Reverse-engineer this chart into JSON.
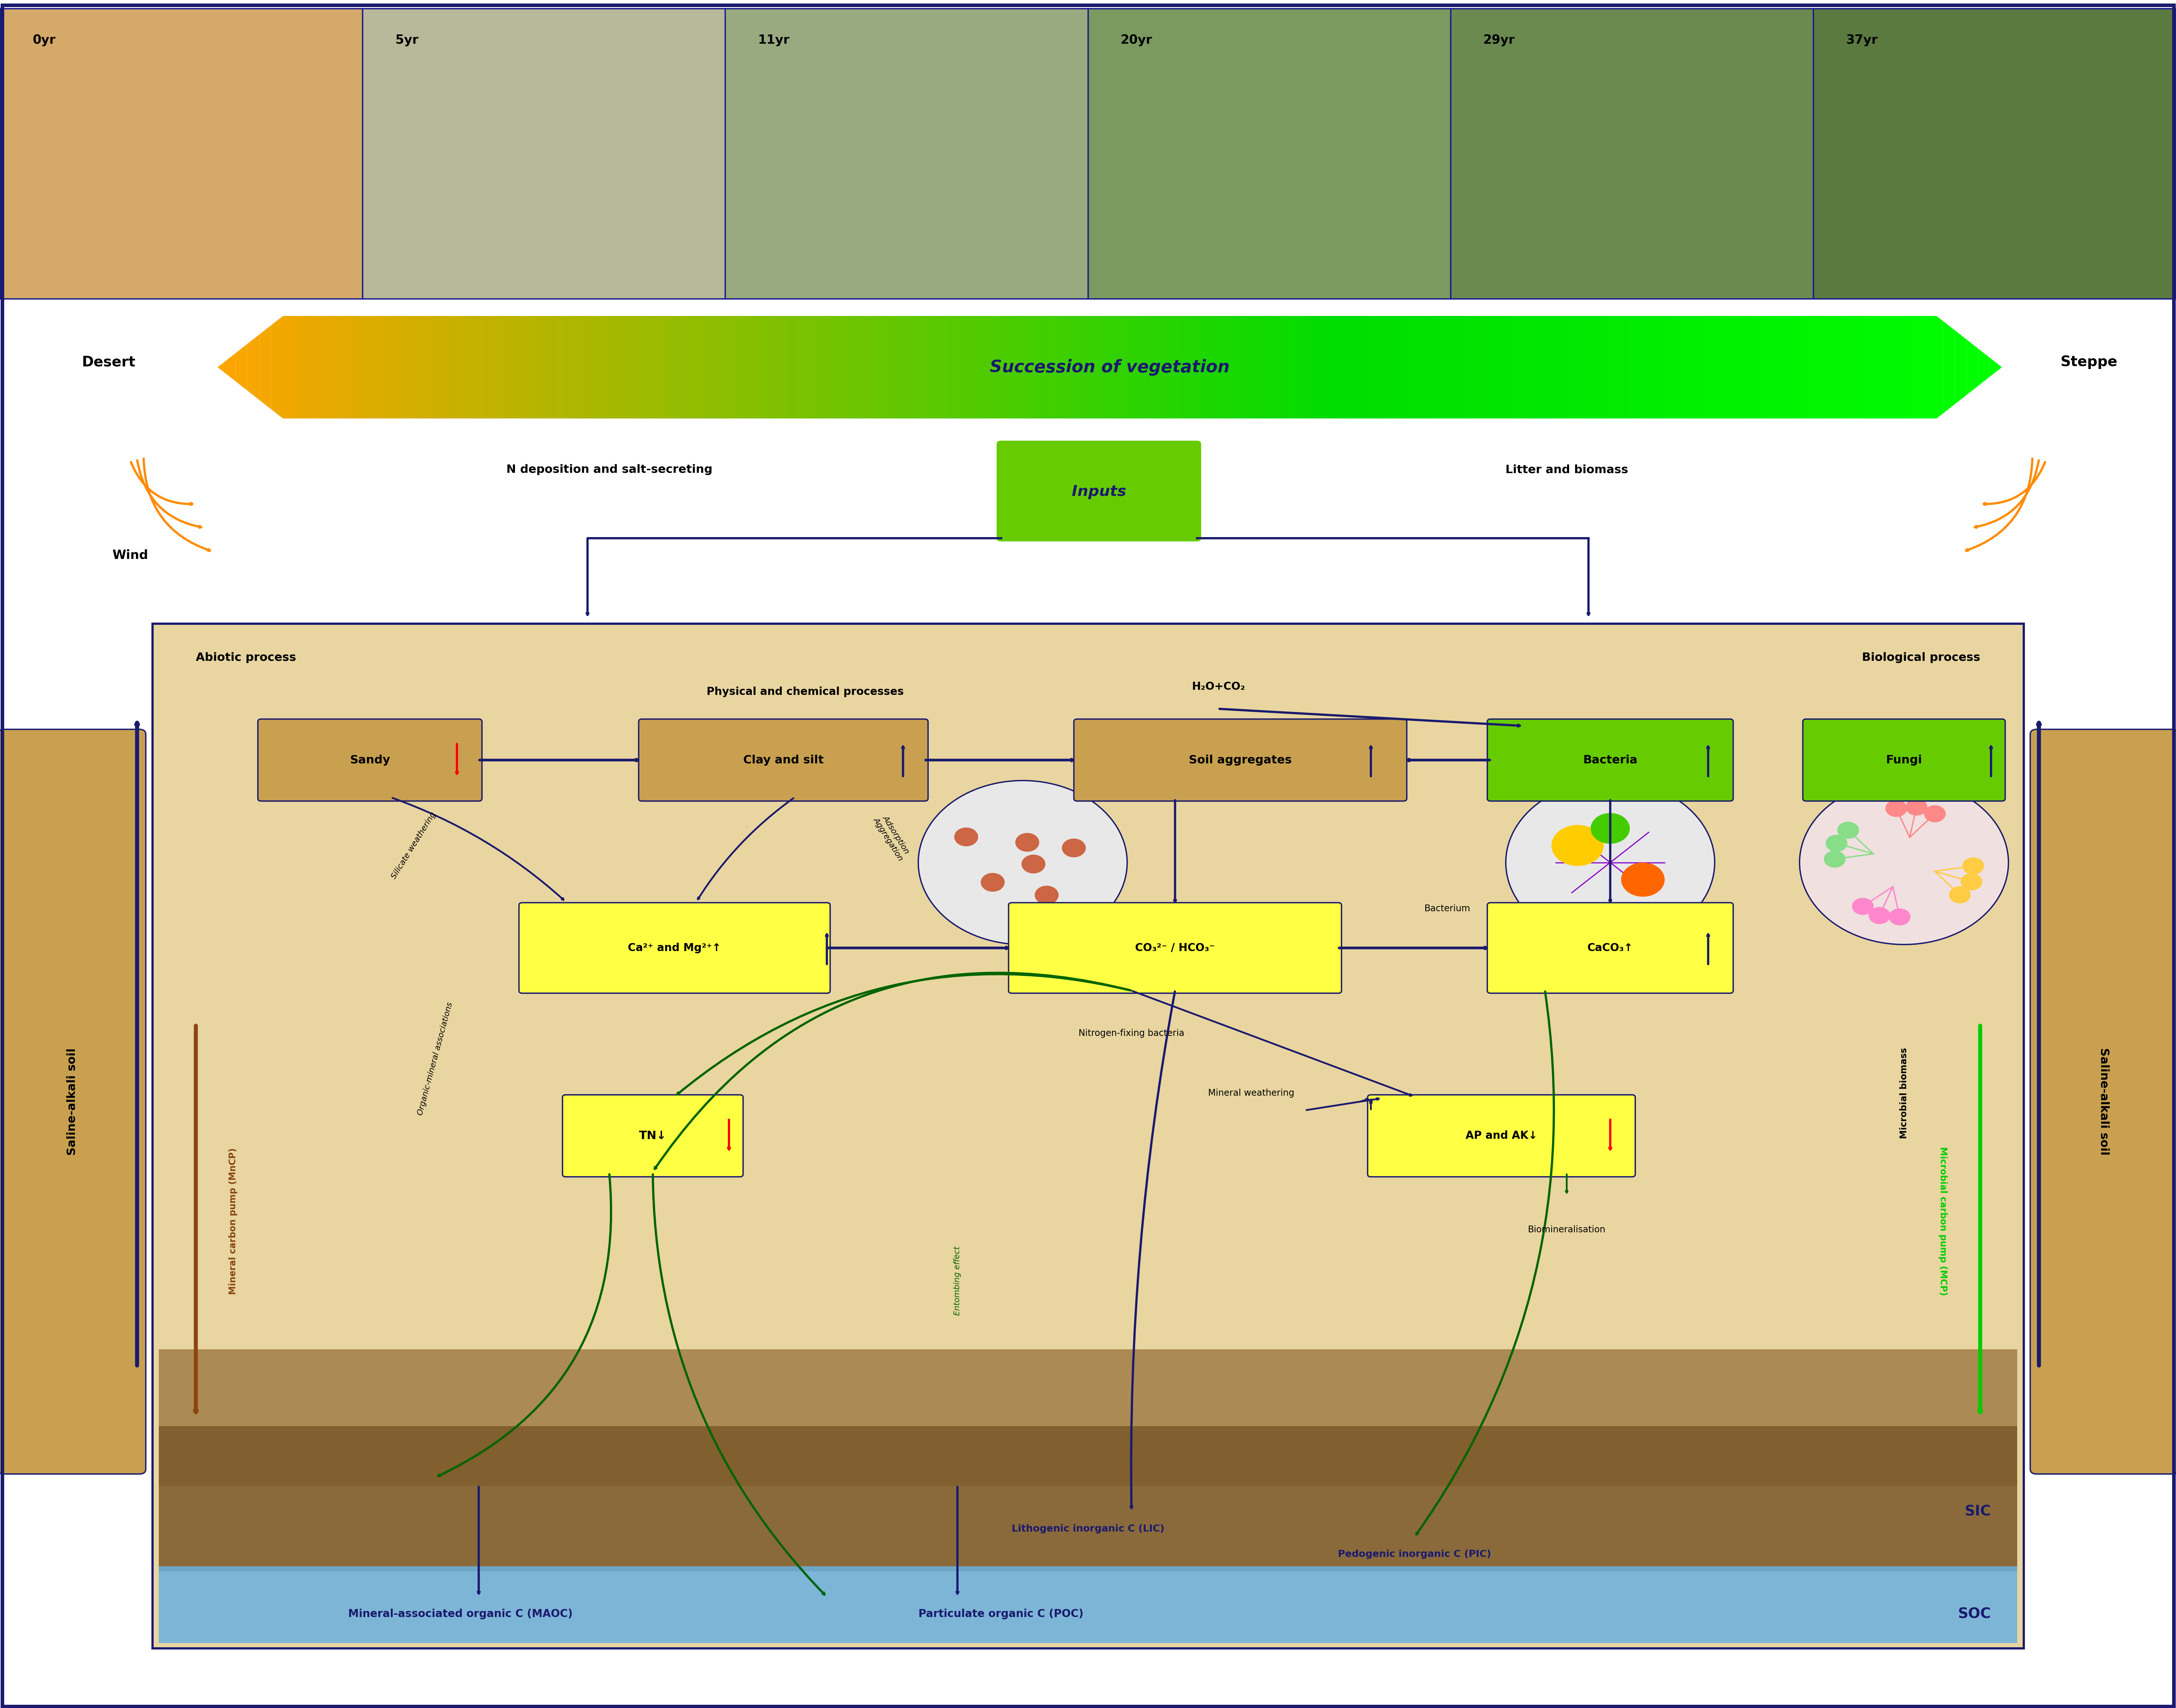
{
  "fig_width": 67.69,
  "fig_height": 53.14,
  "dpi": 100,
  "photo_labels": [
    "0yr",
    "5yr",
    "11yr",
    "20yr",
    "29yr",
    "37yr"
  ],
  "photo_colors": [
    "#d4a96a",
    "#b8b89a",
    "#9aaa80",
    "#7a9a60",
    "#6a8a50",
    "#5a7a40"
  ],
  "succession_text": "Succession of vegetation",
  "desert_text": "Desert",
  "steppe_text": "Steppe",
  "wind_text": "Wind",
  "inputs_text": "Inputs",
  "n_deposition_text": "N deposition and salt-secreting",
  "litter_text": "Litter and biomass",
  "abiotic_text": "Abiotic process",
  "biological_text": "Biological process",
  "phys_chem_text": "Physical and chemical processes",
  "h2o_co2_text": "H₂O+CO₂",
  "sandy_text": "Sandy",
  "clay_silt_text": "Clay and silt",
  "soil_agg_text": "Soil aggregates",
  "bacteria_text": "Bacteria",
  "fungi_text": "Fungi",
  "bacterium_text": "Bacterium",
  "n_fixing_text": "Nitrogen-fixing bacteria",
  "mineral_w_text": "Mineral weathering",
  "biomineralisation_text": "Biomineralisation",
  "silicate_w_text": "Silicate weathering",
  "adsorption_text": "Adsorption\nAggregation",
  "mineral_carbon_text": "Mineral carbon pump (MnCP)",
  "microbial_carbon_text": "Microbial carbon pump (MCP)",
  "organic_mineral_text": "Organic-mineral associations",
  "entombing_text": "Entombing effect",
  "microbial_biomass_text": "Microbial biomass",
  "saline_alkali_text": "Saline-alkali soil",
  "lic_text": "Lithogenic inorganic C (LIC)",
  "pic_text": "Pedogenic inorganic C (PIC)",
  "maoc_text": "Mineral-associated organic C (MAOC)",
  "poc_text": "Particulate organic C (POC)",
  "sic_text": "SIC",
  "soc_text": "SOC",
  "dark_blue": "#1a1a6e",
  "arrow_orange": "#ff8c00",
  "arrow_green": "#006400",
  "soil_bg": "#c9a97a",
  "main_bg": "#e8d5a0"
}
